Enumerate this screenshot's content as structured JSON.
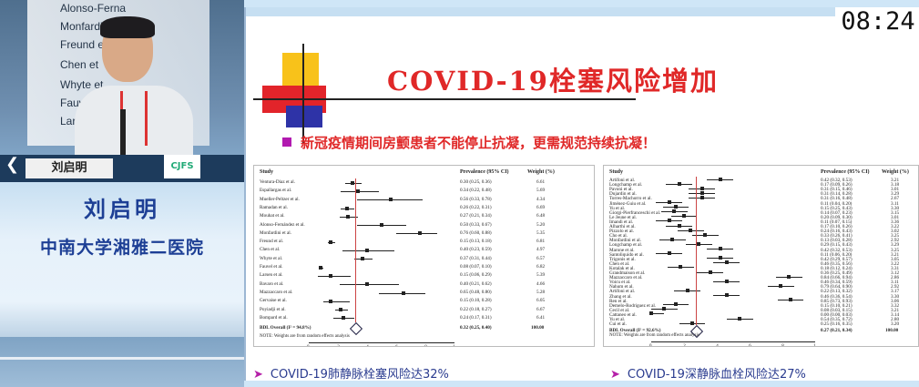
{
  "clock": "08:24",
  "background_slide_lines": [
    "Alonso-Ferna",
    "Monfardini",
    "Freund et",
    "Chen et",
    "Whyte et",
    "Fauvel et",
    "Larsen"
  ],
  "speaker": {
    "nameplate": "刘启明",
    "logo": "CJFS",
    "name": "刘启明",
    "organization": "中南大学湘雅二医院"
  },
  "slide": {
    "title": "COVID-19栓塞风险增加",
    "bullet": "新冠疫情期间房颤患者不能停止抗凝，更需规范持续抗凝！",
    "left_plot": {
      "headers": {
        "study": "Study",
        "prevalence": "Prevalence (95% CI)",
        "weight": "Weight (%)"
      },
      "rows": [
        {
          "study": "Ventura-Diaz et al.",
          "ci": "0.30 (0.25, 0.36)",
          "weight": "6.61",
          "est": 0.3,
          "lo": 0.25,
          "hi": 0.36
        },
        {
          "study": "Espallargas et al.",
          "ci": "0.34 (0.22, 0.48)",
          "weight": "5.69",
          "est": 0.34,
          "lo": 0.22,
          "hi": 0.48
        },
        {
          "study": "Mueller-Peltzer et al.",
          "ci": "0.56 (0.33, 0.78)",
          "weight": "4.34",
          "est": 0.56,
          "lo": 0.33,
          "hi": 0.78
        },
        {
          "study": "Ramadan et al.",
          "ci": "0.26 (0.22, 0.31)",
          "weight": "6.69",
          "est": 0.26,
          "lo": 0.22,
          "hi": 0.31
        },
        {
          "study": "Mouhat et al.",
          "ci": "0.27 (0.21, 0.34)",
          "weight": "6.48",
          "est": 0.27,
          "lo": 0.21,
          "hi": 0.34
        },
        {
          "study": "Alonso-Fernández et al.",
          "ci": "0.50 (0.33, 0.67)",
          "weight": "5.20",
          "est": 0.5,
          "lo": 0.33,
          "hi": 0.67
        },
        {
          "study": "Monfardini et al.",
          "ci": "0.76 (0.60, 0.88)",
          "weight": "5.35",
          "est": 0.76,
          "lo": 0.6,
          "hi": 0.88
        },
        {
          "study": "Freund et al.",
          "ci": "0.15 (0.13, 0.18)",
          "weight": "6.81",
          "est": 0.15,
          "lo": 0.13,
          "hi": 0.18
        },
        {
          "study": "Chen et al.",
          "ci": "0.40 (0.23, 0.59)",
          "weight": "4.97",
          "est": 0.4,
          "lo": 0.23,
          "hi": 0.59
        },
        {
          "study": "Whyte et al.",
          "ci": "0.37 (0.31, 0.44)",
          "weight": "6.57",
          "est": 0.37,
          "lo": 0.31,
          "hi": 0.44
        },
        {
          "study": "Fauvel et al.",
          "ci": "0.08 (0.07, 0.10)",
          "weight": "6.82",
          "est": 0.08,
          "lo": 0.07,
          "hi": 0.1
        },
        {
          "study": "Larsen et al.",
          "ci": "0.15 (0.06, 0.29)",
          "weight": "5.39",
          "est": 0.15,
          "lo": 0.06,
          "hi": 0.29
        },
        {
          "study": "Bavaro et al.",
          "ci": "0.40 (0.21, 0.62)",
          "weight": "4.66",
          "est": 0.4,
          "lo": 0.21,
          "hi": 0.62
        },
        {
          "study": "Mazzaccaro et al.",
          "ci": "0.65 (0.48, 0.80)",
          "weight": "5.28",
          "est": 0.65,
          "lo": 0.48,
          "hi": 0.8
        },
        {
          "study": "Gervaise et al.",
          "ci": "0.15 (0.10, 0.28)",
          "weight": "6.05",
          "est": 0.15,
          "lo": 0.1,
          "hi": 0.28
        },
        {
          "study": "Poyiadji et al.",
          "ci": "0.22 (0.18, 0.27)",
          "weight": "6.67",
          "est": 0.22,
          "lo": 0.18,
          "hi": 0.27
        },
        {
          "study": "Bompard et al.",
          "ci": "0.24 (0.17, 0.31)",
          "weight": "6.41",
          "est": 0.24,
          "lo": 0.17,
          "hi": 0.31
        }
      ],
      "overall": {
        "study": "BDL Overall (I² = 94.8%)",
        "ci": "0.32 (0.25, 0.40)",
        "weight": "100.00"
      },
      "note": "NOTE: Weights are from random effects analysis",
      "ticks": [
        "0",
        ".2",
        ".4",
        ".6",
        ".8",
        "1"
      ]
    },
    "right_plot": {
      "headers": {
        "study": "Study",
        "prevalence": "Prevalence (95% CI)",
        "weight": "Weight (%)"
      },
      "rows": [
        {
          "study": "Artifoni et al.",
          "ci": "0.42 (0.32, 0.53)",
          "weight": "3.21",
          "est": 0.42
        },
        {
          "study": "Longchamp et al.",
          "ci": "0.17 (0.09, 0.26)",
          "weight": "3.18",
          "est": 0.17
        },
        {
          "study": "Pavoni et al.",
          "ci": "0.31 (0.15, 0.46)",
          "weight": "3.01",
          "est": 0.31
        },
        {
          "study": "Dujardin et al.",
          "ci": "0.31 (0.14, 0.28)",
          "weight": "3.29",
          "est": 0.31
        },
        {
          "study": "Torres-Machorro et al.",
          "ci": "0.31 (0.16, 0.48)",
          "weight": "2.67",
          "est": 0.31
        },
        {
          "study": "Jiménez-Guiu et al.",
          "ci": "0.11 (0.04, 0.20)",
          "weight": "3.11",
          "est": 0.11
        },
        {
          "study": "Yu et al.",
          "ci": "0.15 (0.25, 0.43)",
          "weight": "3.30",
          "est": 0.15
        },
        {
          "study": "Giorgi-Pierfranceschi et al.",
          "ci": "0.14 (0.07, 0.23)",
          "weight": "3.15",
          "est": 0.14
        },
        {
          "study": "Le Jeune et al.",
          "ci": "0.20 (0.09, 0.30)",
          "weight": "3.01",
          "est": 0.2
        },
        {
          "study": "Imandi et al.",
          "ci": "0.11 (0.07, 0.15)",
          "weight": "3.36",
          "est": 0.11
        },
        {
          "study": "Alharthi et al.",
          "ci": "0.17 (0.10, 0.26)",
          "weight": "3.22",
          "est": 0.17
        },
        {
          "study": "Pizzolo et al.",
          "ci": "0.24 (0.16, 0.43)",
          "weight": "3.02",
          "est": 0.24
        },
        {
          "study": "Cho et al.",
          "ci": "0.33 (0.26, 0.41)",
          "weight": "3.25",
          "est": 0.33
        },
        {
          "study": "Monfardini et al.",
          "ci": "0.13 (0.03, 0.28)",
          "weight": "2.92",
          "est": 0.13
        },
        {
          "study": "Longchamp et al.",
          "ci": "0.29 (0.15, 0.43)",
          "weight": "3.29",
          "est": 0.29
        },
        {
          "study": "Marone et al.",
          "ci": "0.42 (0.32, 0.53)",
          "weight": "3.25",
          "est": 0.42
        },
        {
          "study": "Santoliquido et al.",
          "ci": "0.11 (0.06, 0.20)",
          "weight": "3.21",
          "est": 0.11
        },
        {
          "study": "Trigonis et al.",
          "ci": "0.42 (0.29, 0.57)",
          "weight": "3.05",
          "est": 0.42
        },
        {
          "study": "Chen et al.",
          "ci": "0.46 (0.35, 0.56)",
          "weight": "3.22",
          "est": 0.46
        },
        {
          "study": "Kotalak et al.",
          "ci": "0.18 (0.12, 0.24)",
          "weight": "3.31",
          "est": 0.18
        },
        {
          "study": "Grandmaison et al.",
          "ci": "0.36 (0.25, 0.49)",
          "weight": "3.12",
          "est": 0.36
        },
        {
          "study": "Mazzaccaro et al.",
          "ci": "0.84 (0.66, 0.94)",
          "weight": "2.86",
          "est": 0.84
        },
        {
          "study": "Voicu et al.",
          "ci": "0.46 (0.34, 0.59)",
          "weight": "3.11",
          "est": 0.46
        },
        {
          "study": "Nahum et al.",
          "ci": "0.79 (0.64, 0.90)",
          "weight": "2.92",
          "est": 0.79
        },
        {
          "study": "Artifoni et al.",
          "ci": "0.22 (0.13, 0.32)",
          "weight": "3.17",
          "est": 0.22
        },
        {
          "study": "Zhang et al.",
          "ci": "0.46 (0.36, 0.54)",
          "weight": "3.30",
          "est": 0.46
        },
        {
          "study": "Ren et al.",
          "ci": "0.85 (0.73, 0.93)",
          "weight": "3.06",
          "est": 0.85
        },
        {
          "study": "Demelo-Rodriguez et al.",
          "ci": "0.15 (0.10, 0.21)",
          "weight": "3.32",
          "est": 0.15
        },
        {
          "study": "Cecil et al.",
          "ci": "0.08 (0.03, 0.15)",
          "weight": "3.21",
          "est": 0.08
        },
        {
          "study": "Cattaneo et al.",
          "ci": "0.00 (0.00, 0.03)",
          "weight": "3.14",
          "est": 0.0
        },
        {
          "study": "Yu et al.",
          "ci": "0.54 (0.35, 0.72)",
          "weight": "2.80",
          "est": 0.54
        },
        {
          "study": "Cui et al.",
          "ci": "0.25 (0.16, 0.35)",
          "weight": "3.20",
          "est": 0.25
        }
      ],
      "overall": {
        "study": "BDL Overall (I² = 92.6%)",
        "ci": "0.27 (0.21, 0.34)",
        "weight": "100.00"
      },
      "note": "NOTE: Weights are from random effects analysis",
      "ticks": [
        "0",
        ".2",
        ".4",
        ".6",
        ".8",
        "1"
      ]
    },
    "caption_left": "COVID-19肺静脉栓塞风险达32%",
    "caption_right": "COVID-19深静脉血栓风险达27%"
  }
}
